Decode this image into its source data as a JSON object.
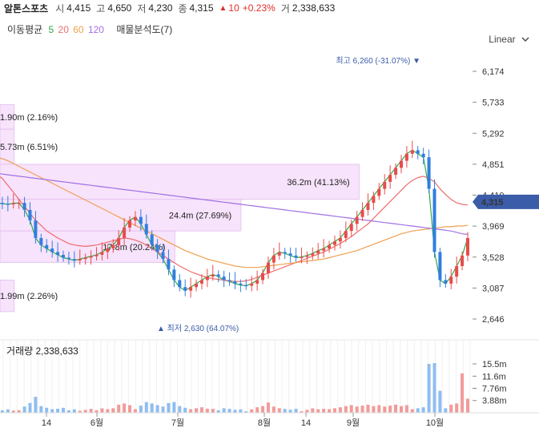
{
  "header": {
    "name": "알톤스포츠",
    "open_label": "시",
    "open": "4,415",
    "high_label": "고",
    "high": "4,650",
    "low_label": "저",
    "low": "4,230",
    "close_label": "종",
    "close": "4,315",
    "change_arrow": "▲",
    "change": "10",
    "change_pct": "+0.23%",
    "volume_label": "거",
    "volume": "2,338,633"
  },
  "ma_legend": {
    "label": "이동평균",
    "periods": [
      "5",
      "20",
      "60",
      "120"
    ],
    "colors": [
      "#35a845",
      "#ef6b6b",
      "#f0a050",
      "#a071e3"
    ],
    "volume_profile_label": "매물분석도(7)"
  },
  "scale_toggle": {
    "label": "Linear",
    "icon": "chevron-down-icon"
  },
  "chart_data": {
    "type": "candlestick",
    "price_axis": {
      "ticks": [
        "6,174",
        "5,733",
        "5,292",
        "4,851",
        "4,410",
        "3,969",
        "3,528",
        "3,087",
        "2,646"
      ],
      "current": "4,315",
      "current_color": "#3b5ca8"
    },
    "x_axis": {
      "ticks": [
        "14",
        "6월",
        "7월",
        "8월",
        "14",
        "9월",
        "10월"
      ]
    },
    "high_marker": {
      "label": "최고 6,260 (-31.07%)",
      "value": 6260
    },
    "low_marker": {
      "label": "최저 2,630 (64.07%)",
      "value": 2630
    },
    "volume_profile": [
      {
        "label": "1.90m (2.16%)",
        "from": 5700,
        "to": 5350,
        "width": 0.03
      },
      {
        "label": "5.73m (6.51%)",
        "from": 5350,
        "to": 4850,
        "width": 0.03
      },
      {
        "label": "36.2m (41.13%)",
        "from": 4850,
        "to": 4350,
        "width": 0.76
      },
      {
        "label": "24.4m (27.69%)",
        "from": 4350,
        "to": 3900,
        "width": 0.51
      },
      {
        "label": "17.8m (20.24%)",
        "from": 3900,
        "to": 3450,
        "width": 0.37
      },
      {
        "label": "1.99m (2.26%)",
        "from": 3200,
        "to": 2750,
        "width": 0.03
      }
    ],
    "volume_label": "거래량",
    "volume_value": "2,338,633",
    "volume_axis": {
      "ticks": [
        "15.5m",
        "11.6m",
        "7.76m",
        "3.88m"
      ]
    },
    "series": [
      {
        "name": "5",
        "color": "#35a845",
        "values": [
          4300,
          4290,
          4280,
          4295,
          4300,
          4200,
          4050,
          3800,
          3700,
          3650,
          3600,
          3560,
          3520,
          3500,
          3480,
          3500,
          3520,
          3540,
          3560,
          3600,
          3650,
          3700,
          3800,
          3950,
          4050,
          4100,
          4000,
          3850,
          3700,
          3600,
          3500,
          3350,
          3200,
          3100,
          3050,
          3100,
          3150,
          3200,
          3250,
          3280,
          3250,
          3200,
          3180,
          3150,
          3130,
          3120,
          3150,
          3200,
          3300,
          3450,
          3550,
          3600,
          3580,
          3550,
          3520,
          3530,
          3550,
          3580,
          3620,
          3650,
          3700,
          3750,
          3800,
          3900,
          4000,
          4100,
          4200,
          4300,
          4400,
          4500,
          4600,
          4700,
          4800,
          4900,
          5000,
          5050,
          5000,
          4950,
          4500,
          3600,
          3200,
          3150,
          3250,
          3400,
          3550,
          3800
        ]
      },
      {
        "name": "20",
        "color": "#ef6b6b",
        "values": [
          4700,
          4650,
          4550,
          4450,
          4350,
          4250,
          4150,
          4050,
          3980,
          3900,
          3850,
          3800,
          3760,
          3720,
          3700,
          3690,
          3680,
          3690,
          3700,
          3720,
          3740,
          3760,
          3780,
          3800,
          3790,
          3770,
          3740,
          3700,
          3650,
          3600,
          3550,
          3500,
          3450,
          3400,
          3360,
          3320,
          3290,
          3260,
          3240,
          3220,
          3210,
          3200,
          3190,
          3180,
          3180,
          3190,
          3210,
          3240,
          3270,
          3300,
          3330,
          3360,
          3390,
          3420,
          3450,
          3480,
          3510,
          3540,
          3570,
          3600,
          3640,
          3680,
          3720,
          3770,
          3820,
          3880,
          3940,
          4000,
          4080,
          4160,
          4240,
          4320,
          4400,
          4480,
          4560,
          4620,
          4660,
          4680,
          4650,
          4600,
          4500,
          4420,
          4350,
          4300,
          4280,
          4270
        ]
      },
      {
        "name": "60",
        "color": "#f0a050",
        "values": [
          4950,
          4930,
          4900,
          4860,
          4820,
          4780,
          4740,
          4700,
          4660,
          4620,
          4580,
          4540,
          4500,
          4460,
          4420,
          4380,
          4340,
          4300,
          4260,
          4220,
          4180,
          4140,
          4100,
          4060,
          4020,
          3980,
          3940,
          3900,
          3860,
          3820,
          3780,
          3740,
          3700,
          3660,
          3620,
          3590,
          3560,
          3530,
          3500,
          3480,
          3460,
          3440,
          3420,
          3400,
          3390,
          3380,
          3380,
          3380,
          3390,
          3400,
          3410,
          3420,
          3430,
          3440,
          3450,
          3460,
          3470,
          3480,
          3490,
          3500,
          3520,
          3540,
          3560,
          3580,
          3600,
          3620,
          3650,
          3680,
          3710,
          3740,
          3770,
          3800,
          3830,
          3860,
          3880,
          3900,
          3910,
          3920,
          3930,
          3940,
          3950,
          3960,
          3960,
          3970,
          3970,
          3980
        ]
      },
      {
        "name": "120",
        "color": "#a071e3",
        "values": [
          4720,
          4710,
          4700,
          4690,
          4680,
          4670,
          4660,
          4650,
          4640,
          4630,
          4620,
          4610,
          4600,
          4590,
          4580,
          4570,
          4560,
          4550,
          4540,
          4530,
          4520,
          4510,
          4500,
          4490,
          4480,
          4470,
          4460,
          4450,
          4440,
          4430,
          4420,
          4410,
          4400,
          4390,
          4380,
          4370,
          4360,
          4350,
          4340,
          4330,
          4320,
          4310,
          4300,
          4290,
          4280,
          4270,
          4260,
          4250,
          4240,
          4230,
          4220,
          4210,
          4200,
          4190,
          4180,
          4170,
          4160,
          4150,
          4140,
          4130,
          4120,
          4110,
          4100,
          4090,
          4080,
          4070,
          4060,
          4050,
          4040,
          4030,
          4020,
          4010,
          4000,
          3990,
          3980,
          3970,
          3960,
          3950,
          3940,
          3930,
          3920,
          3910,
          3900,
          3880,
          3860,
          3850
        ]
      }
    ]
  }
}
